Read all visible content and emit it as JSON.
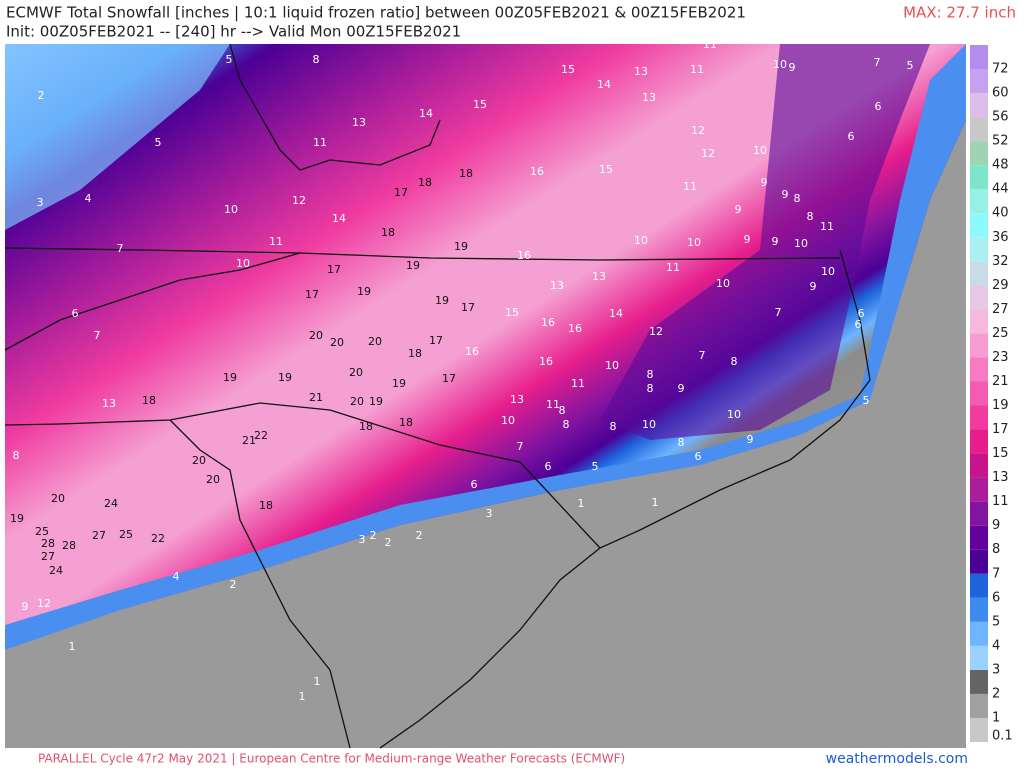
{
  "header": {
    "title": "ECMWF Total Snowfall [inches | 10:1 liquid frozen ratio] between 00Z05FEB2021 & 00Z15FEB2021",
    "subtitle": "Init: 00Z05FEB2021 -- [240] hr --> Valid Mon 00Z15FEB2021",
    "max_label": "MAX: 27.7 inch"
  },
  "colorbar": {
    "labels": [
      "0.1",
      "1",
      "2",
      "3",
      "4",
      "5",
      "6",
      "7",
      "8",
      "9",
      "11",
      "13",
      "15",
      "17",
      "19",
      "21",
      "23",
      "25",
      "27",
      "29",
      "32",
      "36",
      "40",
      "44",
      "48",
      "52",
      "56",
      "60",
      "72"
    ],
    "colors": [
      "#c8c8c8",
      "#a0a0a0",
      "#646464",
      "#9ad2ff",
      "#6eb4ff",
      "#3c8cf0",
      "#1e64dc",
      "#4b0096",
      "#64009b",
      "#8214a0",
      "#aa1e9b",
      "#c8148c",
      "#e61e8c",
      "#f03ca0",
      "#f55ab4",
      "#f87ac3",
      "#f89bd2",
      "#f5b9dc",
      "#e6c8e6",
      "#c8dce6",
      "#aaf0f0",
      "#8cfaff",
      "#96f0e6",
      "#7de6c8",
      "#a0d2b4",
      "#c8c8c8",
      "#dcbeeb",
      "#c8a0f0",
      "#b48cf0"
    ]
  },
  "map_labels": [
    5,
    8,
    2,
    5,
    3,
    4,
    10,
    12,
    11,
    13,
    14,
    15,
    15,
    13,
    14,
    13,
    11,
    11,
    10,
    9,
    7,
    5,
    6,
    6,
    12,
    12,
    10,
    15,
    16,
    11,
    9,
    9,
    8,
    9,
    17,
    18,
    18,
    14,
    18,
    19,
    16,
    10,
    10,
    9,
    9,
    10,
    11,
    8,
    7,
    11,
    10,
    17,
    19,
    13,
    11,
    10,
    10,
    9,
    17,
    19,
    19,
    17,
    15,
    13,
    16,
    16,
    14,
    12,
    7,
    6,
    6,
    6,
    7,
    20,
    20,
    20,
    18,
    17,
    16,
    16,
    10,
    7,
    8,
    8,
    8,
    9,
    11,
    19,
    19,
    20,
    19,
    17,
    13,
    11,
    8,
    13,
    18,
    21,
    20,
    19,
    18,
    18,
    10,
    8,
    8,
    10,
    10,
    5,
    9,
    8,
    6,
    7,
    6,
    5,
    8,
    21,
    22,
    20,
    20,
    6,
    18,
    1,
    1,
    20,
    24,
    19,
    3,
    25,
    28,
    28,
    27,
    25,
    22,
    27,
    24,
    3,
    2,
    2,
    2,
    4,
    2,
    12,
    9,
    1,
    1,
    1
  ],
  "footer": {
    "left": "PARALLEL Cycle 47r2 May 2021 | European Centre for Medium-range Weather Forecasts (ECMWF)",
    "right": "weathermodels.com"
  }
}
